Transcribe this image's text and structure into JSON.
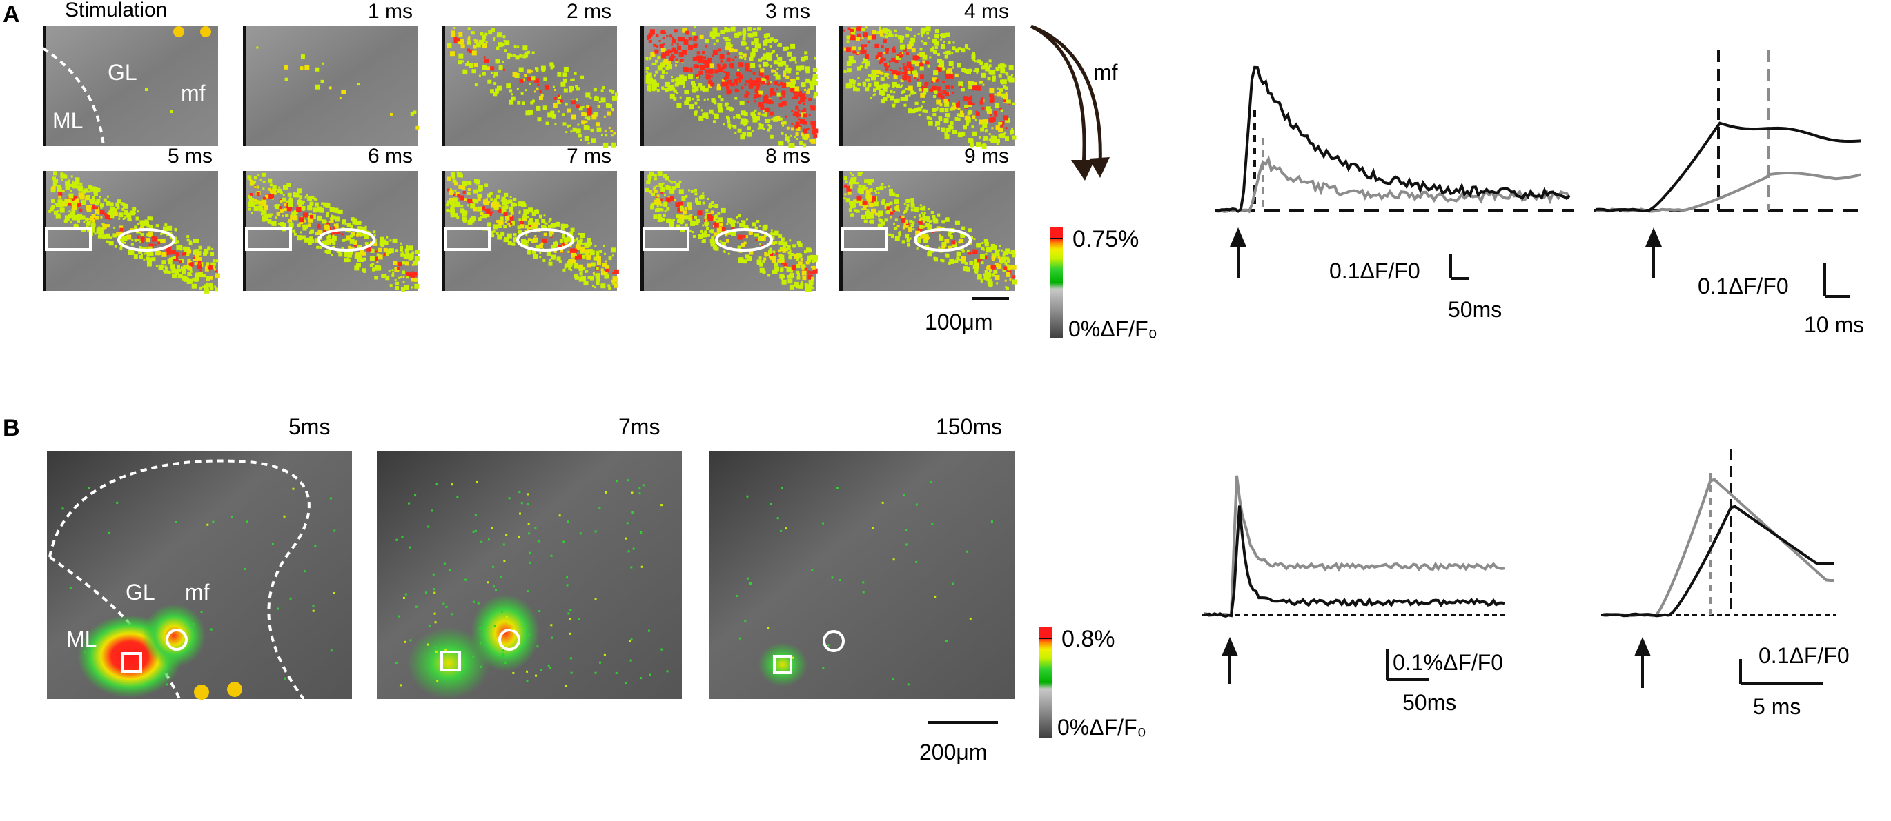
{
  "panel_a": {
    "label": "A",
    "stimulation_label": "Stimulation",
    "annotations": {
      "ml": "ML",
      "gl": "GL",
      "mf": "mf"
    },
    "frame_times": [
      "1 ms",
      "2 ms",
      "3 ms",
      "4 ms",
      "5 ms",
      "6 ms",
      "7 ms",
      "8 ms",
      "9 ms"
    ],
    "frame_levels": [
      0.02,
      0.3,
      0.95,
      0.75,
      0.55,
      0.5,
      0.5,
      0.45,
      0.45
    ],
    "scale_bar": "100μm",
    "arrow_label": "mf",
    "colorbar": {
      "max_label": "0.75%",
      "min_label": "0%ΔF/F₀"
    },
    "trace_full": {
      "scale_y": "0.1ΔF/F0",
      "scale_x": "50ms"
    },
    "trace_zoom": {
      "scale_y": "0.1ΔF/F0",
      "scale_x": "10 ms"
    }
  },
  "panel_b": {
    "label": "B",
    "annotations": {
      "ml": "ML",
      "gl": "GL",
      "mf": "mf"
    },
    "frame_times": [
      "5ms",
      "7ms",
      "150ms"
    ],
    "scale_bar": "200μm",
    "colorbar": {
      "max_label": "0.8%",
      "min_label": "0%ΔF/F₀"
    },
    "trace_full": {
      "scale_y": "0.1%ΔF/F0",
      "scale_x": "50ms"
    },
    "trace_zoom": {
      "scale_y": "0.1ΔF/F0",
      "scale_x": "5 ms"
    }
  },
  "colors": {
    "trace_black": "#111111",
    "trace_gray": "#8c8c8c",
    "marker_yellow": "#f5c800",
    "colormap": [
      "#ff1a1a",
      "#ff8c00",
      "#e8e800",
      "#c8f000",
      "#30d030",
      "#00b000",
      "#b0b0b0",
      "#808080",
      "#4a4a4a"
    ]
  }
}
